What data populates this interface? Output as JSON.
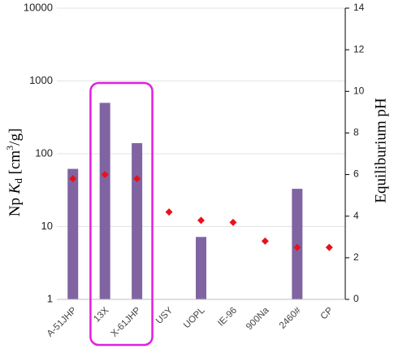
{
  "chart_data": {
    "type": "bar",
    "categories": [
      "A-51JHP",
      "13X",
      "X-61JHP",
      "USY",
      "UOPL",
      "IE-96",
      "900Na",
      "2460#",
      "CP"
    ],
    "series": [
      {
        "chart_type": "bar",
        "axis": "left",
        "color": "#8064a2",
        "values": [
          62,
          500,
          140,
          null,
          7.2,
          null,
          null,
          33,
          null
        ]
      },
      {
        "chart_type": "scatter",
        "axis": "right",
        "marker": "diamond",
        "color": "#e8121c",
        "values": [
          5.8,
          6.0,
          5.8,
          4.2,
          3.8,
          3.7,
          2.8,
          2.5,
          2.5
        ]
      }
    ],
    "ylabel_left": {
      "prefix": "Np ",
      "K": "K",
      "sub": "d",
      "unit_pre": " [cm",
      "sup": "3",
      "unit_post": "/g]"
    },
    "ylabel_right": "Equiliburium pH",
    "yscale_left": "log",
    "ylim_left": [
      1,
      10000
    ],
    "yticks_left": [
      "1",
      "10",
      "100",
      "1000",
      "10000"
    ],
    "ylim_right": [
      0,
      14
    ],
    "yticks_right": [
      "0",
      "2",
      "4",
      "6",
      "8",
      "10",
      "12",
      "14"
    ],
    "grid": "horizontal",
    "highlight": {
      "categories": [
        "13X",
        "X-61JHP"
      ],
      "color": "#e020e0"
    }
  }
}
